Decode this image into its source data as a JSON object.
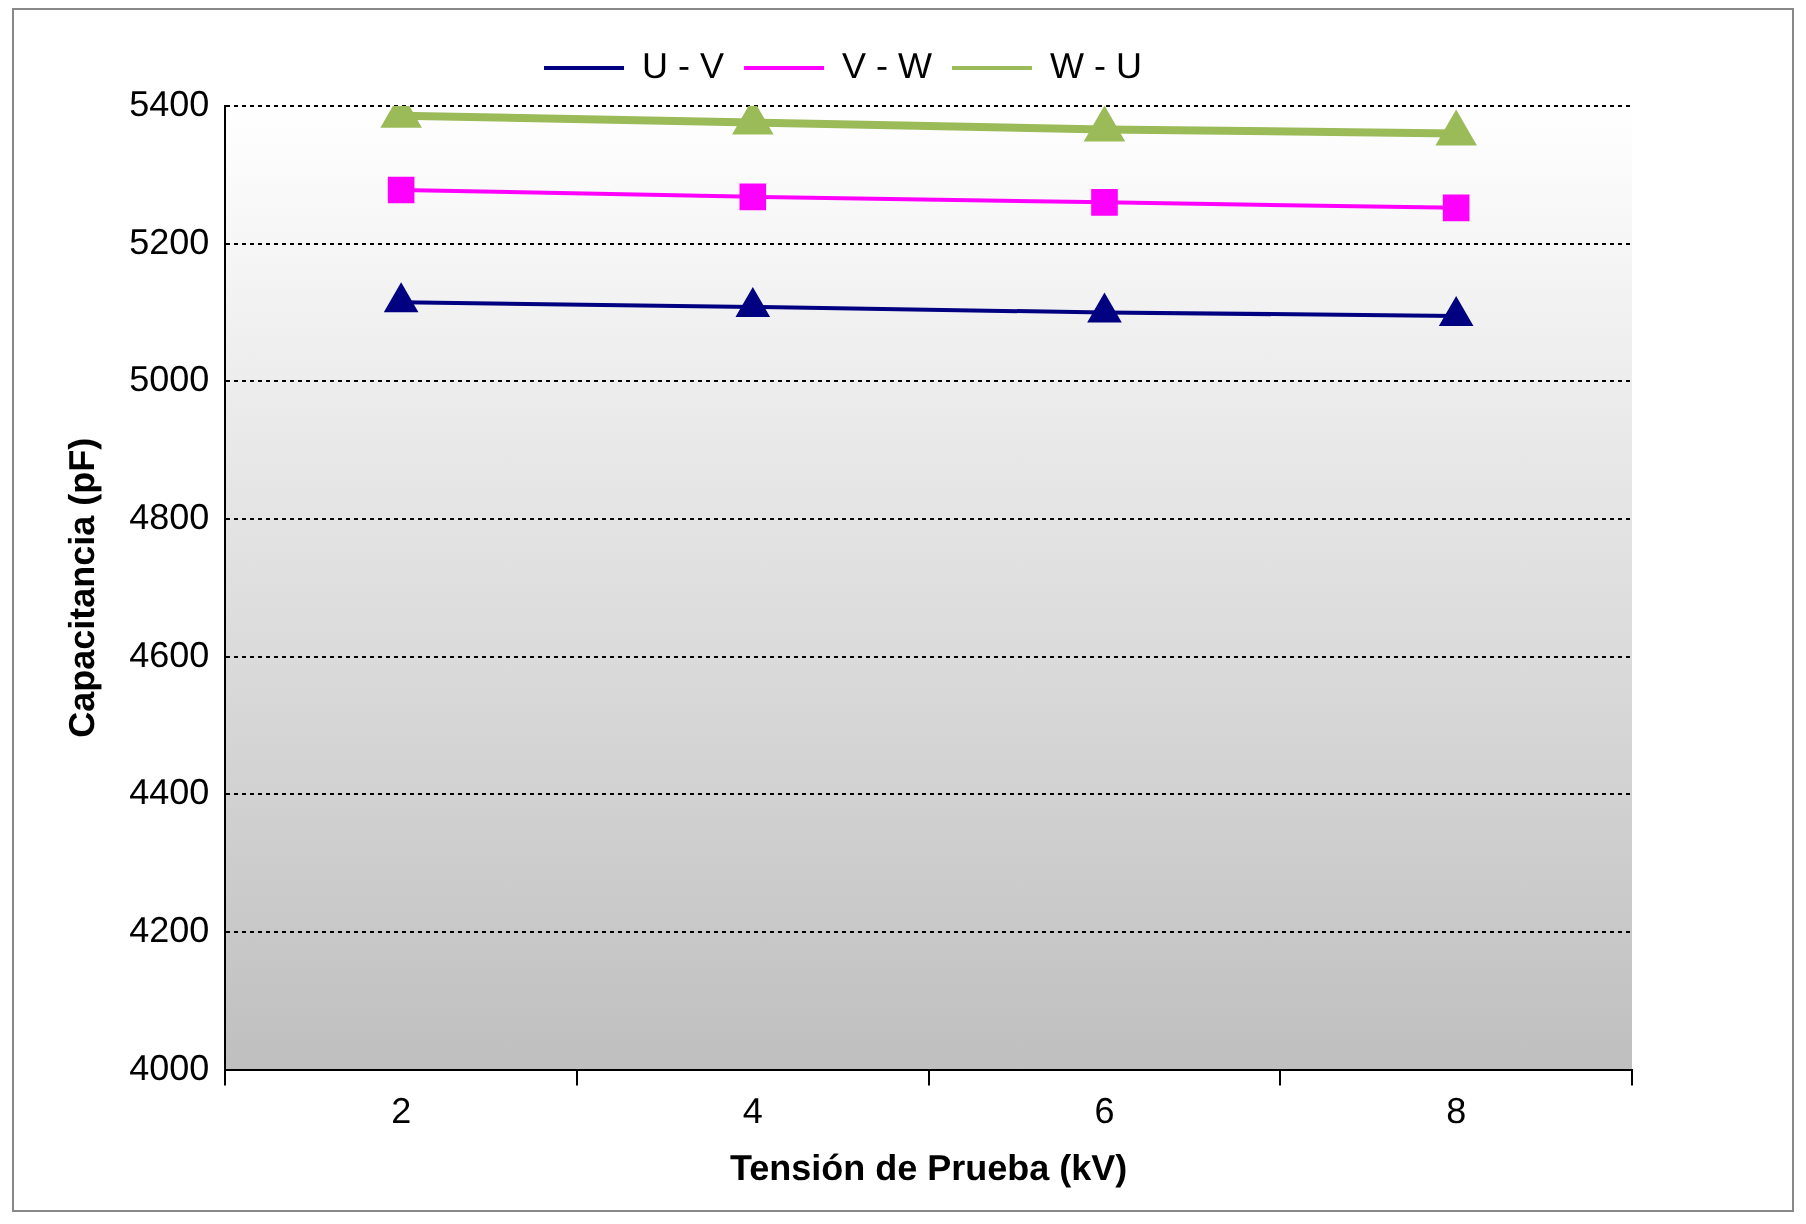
{
  "chart_data": {
    "type": "line",
    "xlabel": "Tensión de Prueba (kV)",
    "ylabel": "Capacitancia (pF)",
    "categories": [
      "2",
      "4",
      "6",
      "8"
    ],
    "series": [
      {
        "name": "U - V",
        "color": "#000080",
        "values": [
          5115,
          5108,
          5100,
          5095
        ],
        "marker": "triangle"
      },
      {
        "name": "V - W",
        "color": "#ff00ff",
        "values": [
          5278,
          5268,
          5260,
          5252
        ],
        "marker": "square"
      },
      {
        "name": "W - U",
        "color": "#9bbb59",
        "values": [
          5386,
          5376,
          5366,
          5360
        ],
        "marker": "triangle"
      }
    ],
    "ylim": [
      4000,
      5400
    ],
    "yticks": [
      4000,
      4200,
      4400,
      4600,
      4800,
      5000,
      5200,
      5400
    ],
    "grid": "y",
    "legend": "top",
    "line_style": "solid"
  }
}
